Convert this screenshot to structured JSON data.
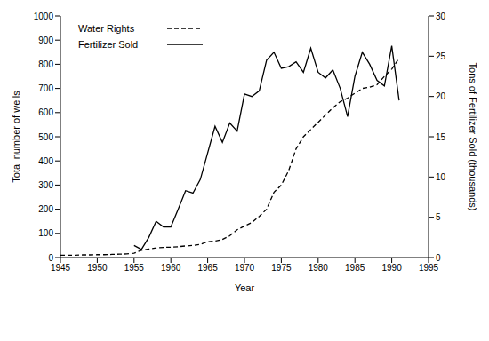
{
  "chart_data": {
    "type": "line",
    "x_label": "Year",
    "y_label": "Total number of wells",
    "y2_label": "Tons of Fertilizer Sold (thousands)",
    "x": [
      1945,
      1946,
      1947,
      1948,
      1949,
      1950,
      1951,
      1952,
      1953,
      1954,
      1955,
      1956,
      1957,
      1958,
      1959,
      1960,
      1961,
      1962,
      1963,
      1964,
      1965,
      1966,
      1967,
      1968,
      1969,
      1970,
      1971,
      1972,
      1973,
      1974,
      1975,
      1976,
      1977,
      1978,
      1979,
      1980,
      1981,
      1982,
      1983,
      1984,
      1985,
      1986,
      1987,
      1988,
      1989,
      1990,
      1991
    ],
    "xlim": [
      1945,
      1995
    ],
    "xticks": [
      1945,
      1950,
      1955,
      1960,
      1965,
      1970,
      1975,
      1980,
      1985,
      1990,
      1995
    ],
    "ylim": [
      0,
      1000
    ],
    "yticks": [
      0,
      100,
      200,
      300,
      400,
      500,
      600,
      700,
      800,
      900,
      1000
    ],
    "y2lim": [
      0,
      30
    ],
    "y2ticks": [
      0,
      5,
      10,
      15,
      20,
      25,
      30
    ],
    "legend": "top-left",
    "series": [
      {
        "name": "Water Rights",
        "color": "#000000",
        "line_style": "dashed",
        "values": [
          10,
          10,
          10,
          11,
          11,
          12,
          12,
          13,
          14,
          15,
          18,
          30,
          35,
          40,
          42,
          43,
          45,
          48,
          50,
          55,
          65,
          68,
          75,
          90,
          115,
          130,
          145,
          170,
          200,
          270,
          300,
          360,
          450,
          500,
          530,
          560,
          590,
          620,
          645,
          660,
          680,
          700,
          705,
          715,
          750,
          780,
          825
        ]
      },
      {
        "name": "Fertilizer Sold",
        "color": "#000000",
        "line_style": "solid",
        "axis": "y2",
        "values": [
          null,
          null,
          null,
          null,
          null,
          null,
          null,
          null,
          null,
          null,
          1.5,
          1.0,
          2.5,
          4.5,
          3.8,
          3.8,
          6.0,
          8.3,
          8.0,
          9.7,
          13.0,
          16.3,
          14.3,
          16.7,
          15.7,
          20.3,
          20.0,
          20.7,
          24.5,
          25.5,
          23.5,
          23.7,
          24.3,
          23.0,
          26.0,
          23.0,
          22.3,
          23.3,
          21.0,
          17.5,
          22.5,
          25.5,
          24.0,
          22.0,
          21.3,
          26.3,
          19.5
        ]
      }
    ]
  }
}
